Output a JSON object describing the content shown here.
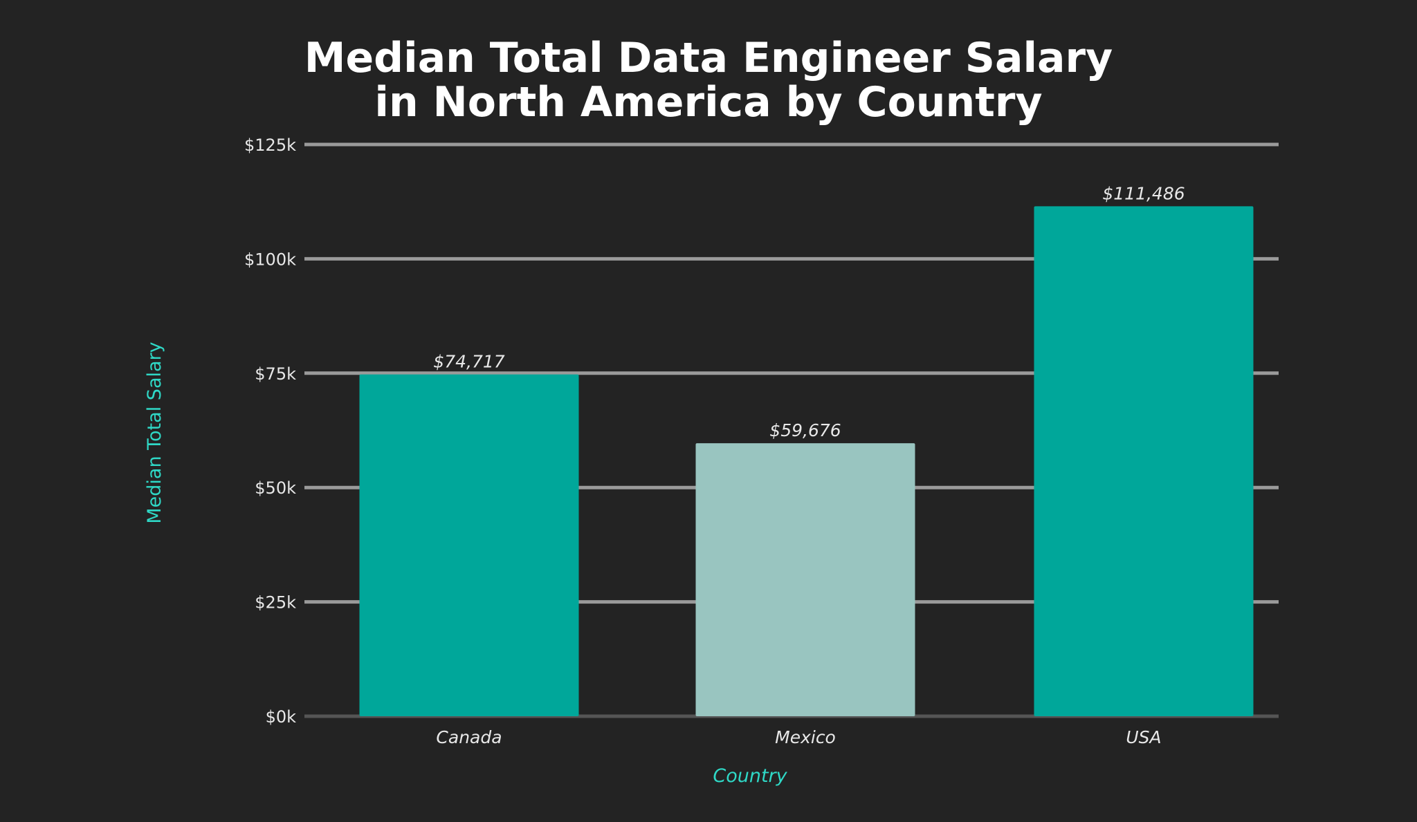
{
  "chart_data": {
    "type": "bar",
    "title_line1": "Median Total Data Engineer Salary",
    "title_line2": "in North America by Country",
    "xlabel": "Country",
    "ylabel": "Median Total Salary",
    "categories": [
      "Canada",
      "Mexico",
      "USA"
    ],
    "values": [
      74717,
      59676,
      111486
    ],
    "data_labels": [
      "$74,717",
      "$59,676",
      "$111,486"
    ],
    "bar_colors": [
      "#00a79a",
      "#99c5c0",
      "#00a79a"
    ],
    "ylim": [
      0,
      125000
    ],
    "yticks": [
      0,
      25000,
      50000,
      75000,
      100000,
      125000
    ],
    "ytick_labels": [
      "$0k",
      "$25k",
      "$50k",
      "$75k",
      "$100k",
      "$125k"
    ],
    "grid": true,
    "colors": {
      "background": "#232323",
      "axis_label": "#2fd8c6",
      "grid": "#9a9a9a",
      "baseline": "#555555",
      "text": "#e8e8e8",
      "title": "#ffffff"
    }
  }
}
